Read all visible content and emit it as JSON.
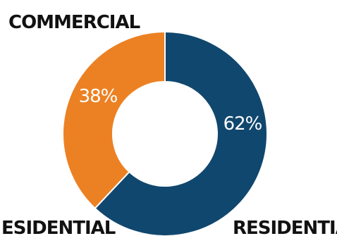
{
  "chart_data": {
    "type": "pie",
    "title": "",
    "slices": [
      {
        "label": "RESIDENTIAL",
        "value": 62,
        "value_label": "62%",
        "color": "#10476e"
      },
      {
        "label": "COMMERCIAL",
        "value": 38,
        "value_label": "38%",
        "color": "#ec8123"
      }
    ],
    "donut": true
  },
  "labels": {
    "commercial": "COMMERCIAL",
    "residential_right": "RESIDENTIAL",
    "residential_left": "ESIDENTIAL"
  }
}
